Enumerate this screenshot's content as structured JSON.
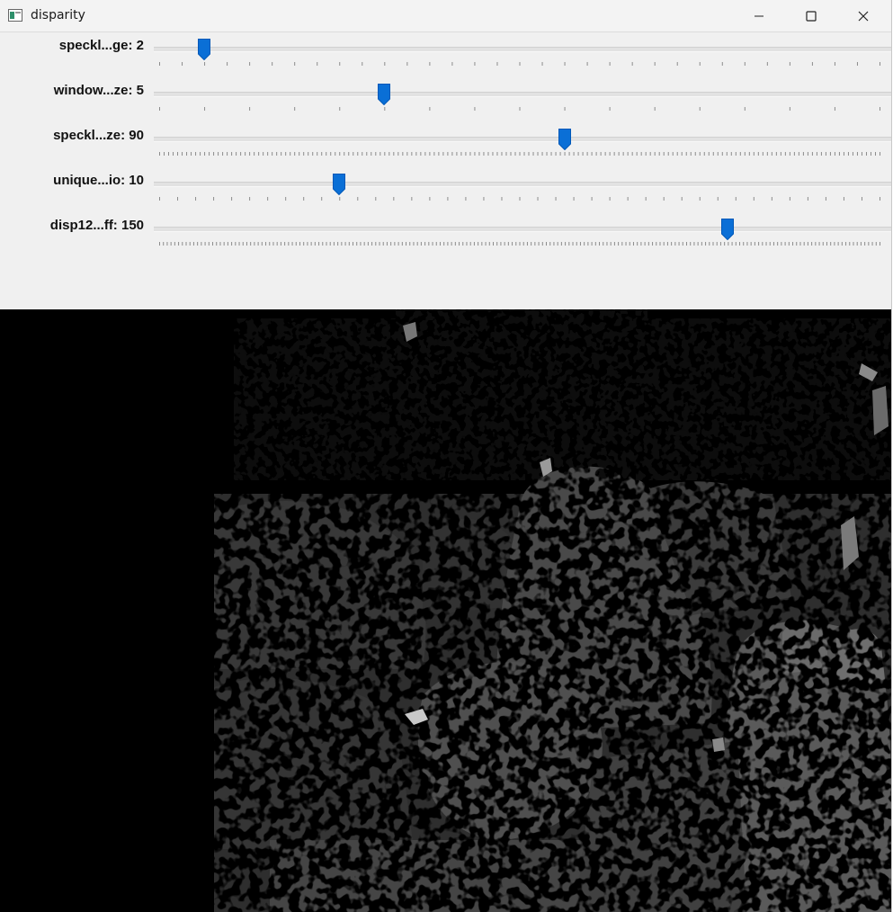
{
  "window": {
    "title": "disparity",
    "controls": {
      "minimize": "minimize-icon",
      "maximize": "maximize-icon",
      "close": "close-icon"
    }
  },
  "trackbars": [
    {
      "label": "speckl...ge: 2",
      "value": 2,
      "max": 32
    },
    {
      "label": "window...ze: 5",
      "value": 5,
      "max": 16
    },
    {
      "label": "speckl...ze: 90",
      "value": 90,
      "max": 160
    },
    {
      "label": "unique...io: 10",
      "value": 10,
      "max": 40
    },
    {
      "label": "disp12...ff: 150",
      "value": 150,
      "max": 190
    }
  ],
  "colors": {
    "thumb": "#0a6fd6",
    "background": "#f0f0f0",
    "image_background": "#000000"
  }
}
